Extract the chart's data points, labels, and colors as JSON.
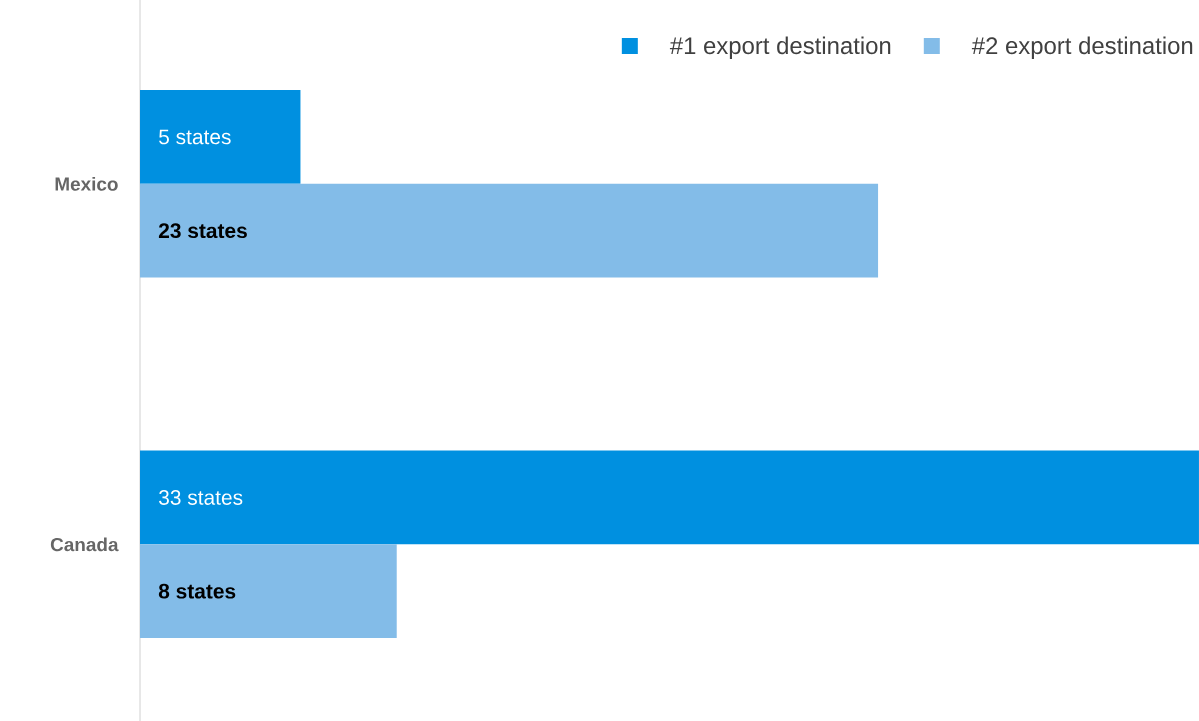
{
  "chart_data": {
    "type": "bar",
    "orientation": "horizontal",
    "categories": [
      "Mexico",
      "Canada"
    ],
    "series": [
      {
        "name": "#1 export destination",
        "color": "#0090e0",
        "values": [
          5,
          33
        ],
        "value_labels": [
          "5 states",
          "33 states"
        ]
      },
      {
        "name": "#2 export destination",
        "color": "#83bce8",
        "values": [
          23,
          8
        ],
        "value_labels": [
          "23 states",
          "8 states"
        ]
      }
    ],
    "tick_labels": "y",
    "legend": "top right"
  }
}
